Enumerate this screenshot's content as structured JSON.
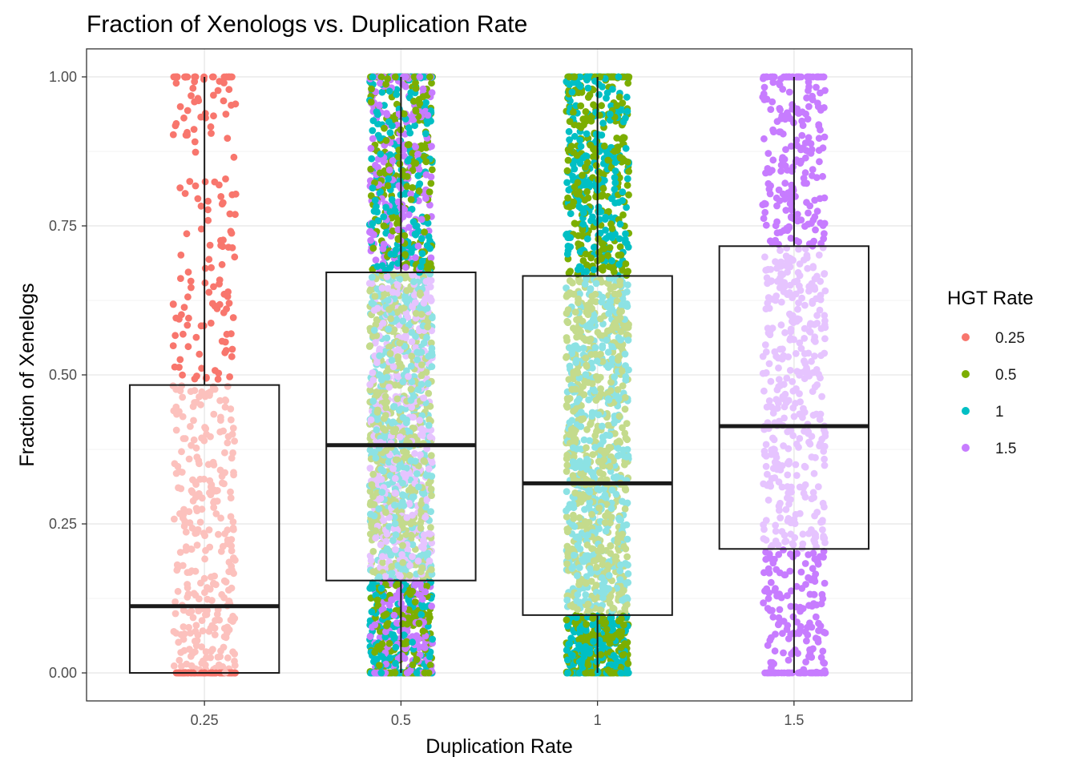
{
  "chart_data": {
    "type": "box",
    "title": "Fraction of Xenologs vs. Duplication Rate",
    "xlabel": "Duplication Rate",
    "ylabel": "Fraction of Xenelogs",
    "categories": [
      "0.25",
      "0.5",
      "1",
      "1.5"
    ],
    "yticks": [
      "0.00",
      "0.25",
      "0.50",
      "0.75",
      "1.00"
    ],
    "ylim": [
      -0.047,
      1.047
    ],
    "grid": true,
    "legend": {
      "title": "HGT Rate",
      "placement": "right",
      "entries": [
        {
          "label": "0.25",
          "color": "#F8766D"
        },
        {
          "label": "0.5",
          "color": "#7CAE00"
        },
        {
          "label": "1",
          "color": "#00BFC4"
        },
        {
          "label": "1.5",
          "color": "#C77CFF"
        }
      ]
    },
    "boxes": [
      {
        "category": "0.25",
        "min": 0.0,
        "q1": 0.0,
        "median": 0.112,
        "q3": 0.483,
        "max": 1.0
      },
      {
        "category": "0.5",
        "min": 0.0,
        "q1": 0.155,
        "median": 0.382,
        "q3": 0.672,
        "max": 1.0
      },
      {
        "category": "1",
        "min": 0.0,
        "q1": 0.097,
        "median": 0.318,
        "q3": 0.666,
        "max": 1.0
      },
      {
        "category": "1.5",
        "min": 0.0,
        "q1": 0.208,
        "median": 0.414,
        "q3": 0.716,
        "max": 1.0
      }
    ],
    "points": {
      "style": "jittered",
      "box_interior_lightened": true,
      "groups": [
        {
          "category": "0.25",
          "hgt_rates": [
            "0.25"
          ],
          "count": 520
        },
        {
          "category": "0.5",
          "hgt_rates": [
            "0.5",
            "1",
            "1.5"
          ],
          "count": 2400
        },
        {
          "category": "1",
          "hgt_rates": [
            "0.5",
            "1"
          ],
          "count": 1900
        },
        {
          "category": "1.5",
          "hgt_rates": [
            "1.5"
          ],
          "count": 760
        }
      ]
    }
  }
}
